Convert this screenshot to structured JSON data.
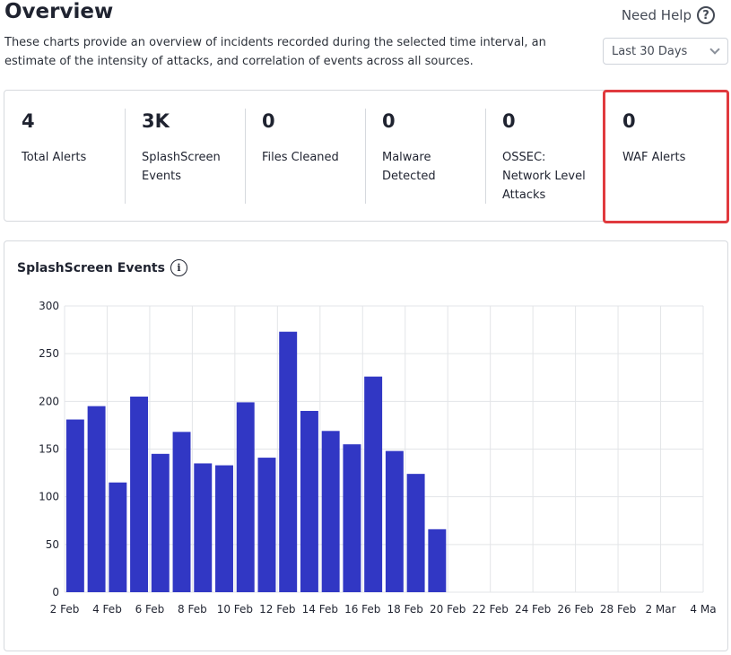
{
  "header": {
    "title": "Overview",
    "help_label": "Need Help",
    "description": "These charts provide an overview of incidents recorded during the selected time interval, an estimate of the intensity of attacks, and correlation of events across all sources.",
    "period_selected": "Last 30 Days"
  },
  "stats": [
    {
      "value": "4",
      "label": "Total Alerts"
    },
    {
      "value": "3K",
      "label": "SplashScreen Events"
    },
    {
      "value": "0",
      "label": "Files Cleaned"
    },
    {
      "value": "0",
      "label": "Malware Detected"
    },
    {
      "value": "0",
      "label": "OSSEC: Network Level Attacks"
    },
    {
      "value": "0",
      "label": "WAF Alerts"
    }
  ],
  "colors": {
    "bar": "#3137c4",
    "grid": "#e3e5e8",
    "highlight": "#e03a3e"
  },
  "chart": {
    "title": "SplashScreen Events"
  },
  "chart_data": {
    "type": "bar",
    "title": "SplashScreen Events",
    "ylim": [
      0,
      300
    ],
    "yticks": [
      0,
      50,
      100,
      150,
      200,
      250,
      300
    ],
    "xtick_labels": [
      "2 Feb",
      "4 Feb",
      "6 Feb",
      "8 Feb",
      "10 Feb",
      "12 Feb",
      "14 Feb",
      "16 Feb",
      "18 Feb",
      "20 Feb",
      "22 Feb",
      "24 Feb",
      "26 Feb",
      "28 Feb",
      "2 Mar",
      "4 Ma"
    ],
    "values": [
      181,
      195,
      115,
      205,
      145,
      168,
      135,
      133,
      199,
      141,
      273,
      190,
      169,
      155,
      226,
      148,
      124,
      66
    ],
    "grid": true
  }
}
